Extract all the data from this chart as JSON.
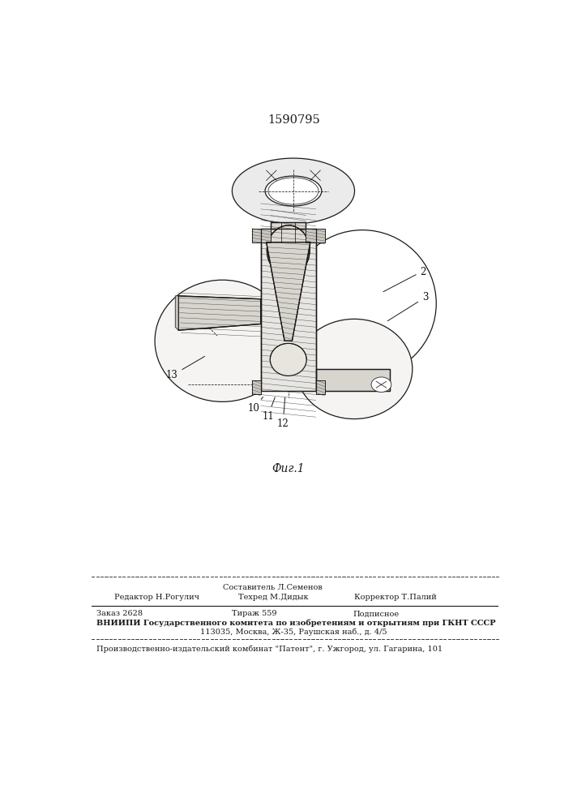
{
  "title_number": "1590795",
  "figure_label": "Фиг.1",
  "footer": {
    "line1_center": "Составитель Л.Семенов",
    "line2_col1": "Редактор Н.Рогулич",
    "line2_col2": "Техред М.Дидык",
    "line2_col3": "Корректор Т.Палий",
    "line3_col1": "Заказ 2628",
    "line3_col2": "Тираж 559",
    "line3_col3": "Подписное",
    "line4": "ВНИИПИ Государственного комитета по изобретениям и открытиям при ГКНТ СССР",
    "line5": "113035, Москва, Ж-35, Раушская наб., д. 4/5",
    "line6": "Производственно-издательский комбинат \"Патент\", г. Ужгород, ул. Гагарина, 101"
  },
  "lc": "#1a1a1a",
  "fc_light": "#f0eeea",
  "fc_hatch": "#e0dcd6",
  "fc_dark": "#c8c4be"
}
